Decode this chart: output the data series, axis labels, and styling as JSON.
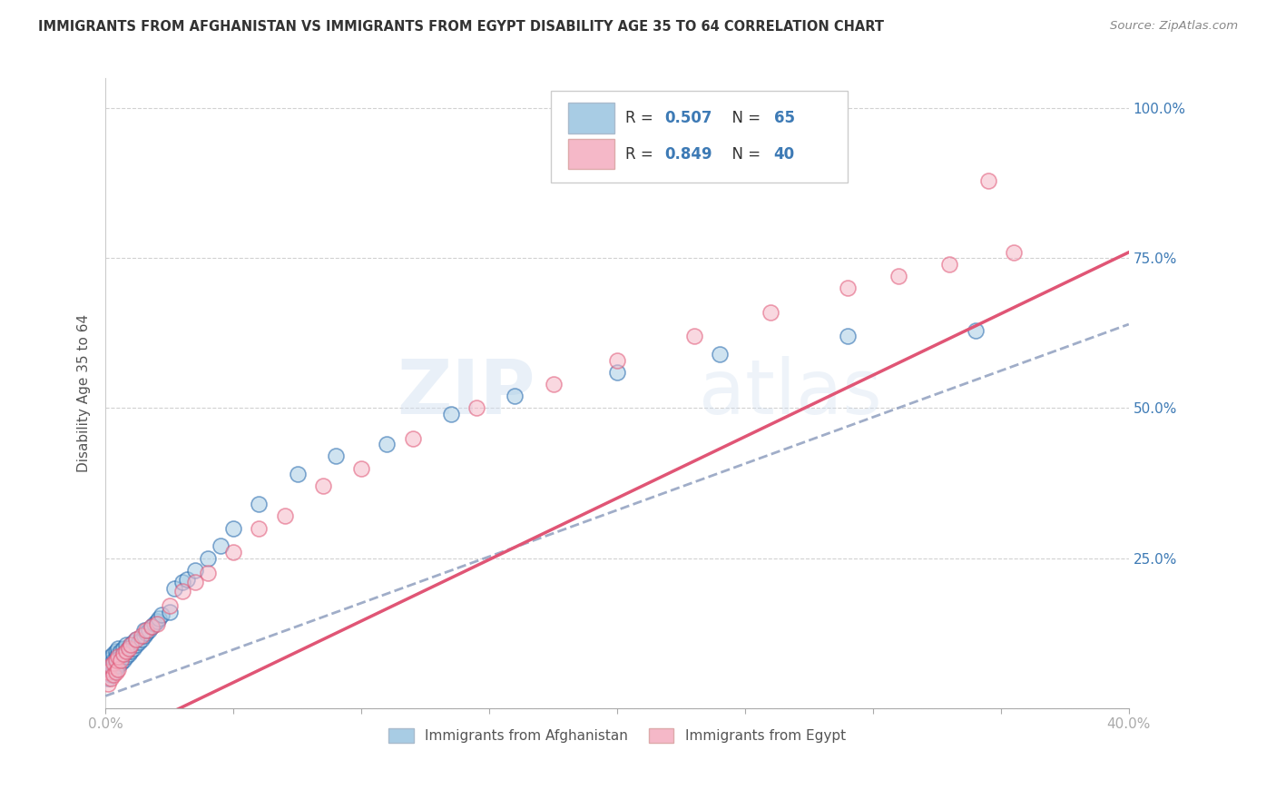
{
  "title": "IMMIGRANTS FROM AFGHANISTAN VS IMMIGRANTS FROM EGYPT DISABILITY AGE 35 TO 64 CORRELATION CHART",
  "source": "Source: ZipAtlas.com",
  "ylabel": "Disability Age 35 to 64",
  "x_min": 0.0,
  "x_max": 0.4,
  "y_min": 0.0,
  "y_max": 1.05,
  "blue_color": "#a8cce4",
  "pink_color": "#f5b8c8",
  "blue_line_color": "#2166ac",
  "pink_line_color": "#e05575",
  "blue_dashed_color": "#aaaacc",
  "R_blue": 0.507,
  "N_blue": 65,
  "R_pink": 0.849,
  "N_pink": 40,
  "watermark_zip": "ZIP",
  "watermark_atlas": "atlas",
  "legend_label_blue": "Immigrants from Afghanistan",
  "legend_label_pink": "Immigrants from Egypt",
  "blue_line_intercept": 0.02,
  "blue_line_slope": 1.55,
  "pink_line_intercept": -0.06,
  "pink_line_slope": 2.05,
  "afghanistan_x": [
    0.001,
    0.001,
    0.001,
    0.002,
    0.002,
    0.002,
    0.002,
    0.003,
    0.003,
    0.003,
    0.003,
    0.004,
    0.004,
    0.004,
    0.004,
    0.005,
    0.005,
    0.005,
    0.005,
    0.006,
    0.006,
    0.006,
    0.007,
    0.007,
    0.007,
    0.008,
    0.008,
    0.008,
    0.009,
    0.009,
    0.01,
    0.01,
    0.011,
    0.011,
    0.012,
    0.012,
    0.013,
    0.014,
    0.015,
    0.015,
    0.016,
    0.017,
    0.018,
    0.019,
    0.02,
    0.021,
    0.022,
    0.025,
    0.027,
    0.03,
    0.032,
    0.035,
    0.04,
    0.045,
    0.05,
    0.06,
    0.075,
    0.09,
    0.11,
    0.135,
    0.16,
    0.2,
    0.24,
    0.29,
    0.34
  ],
  "afghanistan_y": [
    0.05,
    0.06,
    0.08,
    0.055,
    0.065,
    0.075,
    0.085,
    0.06,
    0.07,
    0.08,
    0.09,
    0.065,
    0.075,
    0.085,
    0.095,
    0.07,
    0.08,
    0.09,
    0.1,
    0.075,
    0.085,
    0.095,
    0.08,
    0.09,
    0.1,
    0.085,
    0.095,
    0.105,
    0.09,
    0.1,
    0.095,
    0.105,
    0.1,
    0.11,
    0.105,
    0.115,
    0.11,
    0.115,
    0.12,
    0.13,
    0.125,
    0.13,
    0.135,
    0.14,
    0.145,
    0.15,
    0.155,
    0.16,
    0.2,
    0.21,
    0.215,
    0.23,
    0.25,
    0.27,
    0.3,
    0.34,
    0.39,
    0.42,
    0.44,
    0.49,
    0.52,
    0.56,
    0.59,
    0.62,
    0.63
  ],
  "egypt_x": [
    0.001,
    0.001,
    0.002,
    0.002,
    0.003,
    0.003,
    0.004,
    0.004,
    0.005,
    0.005,
    0.006,
    0.007,
    0.008,
    0.009,
    0.01,
    0.012,
    0.014,
    0.016,
    0.018,
    0.02,
    0.025,
    0.03,
    0.035,
    0.04,
    0.05,
    0.06,
    0.07,
    0.085,
    0.1,
    0.12,
    0.145,
    0.175,
    0.2,
    0.23,
    0.26,
    0.29,
    0.31,
    0.33,
    0.355,
    0.345
  ],
  "egypt_y": [
    0.04,
    0.06,
    0.05,
    0.07,
    0.055,
    0.075,
    0.06,
    0.08,
    0.065,
    0.085,
    0.08,
    0.09,
    0.095,
    0.1,
    0.105,
    0.115,
    0.12,
    0.13,
    0.135,
    0.14,
    0.17,
    0.195,
    0.21,
    0.225,
    0.26,
    0.3,
    0.32,
    0.37,
    0.4,
    0.45,
    0.5,
    0.54,
    0.58,
    0.62,
    0.66,
    0.7,
    0.72,
    0.74,
    0.76,
    0.88
  ]
}
